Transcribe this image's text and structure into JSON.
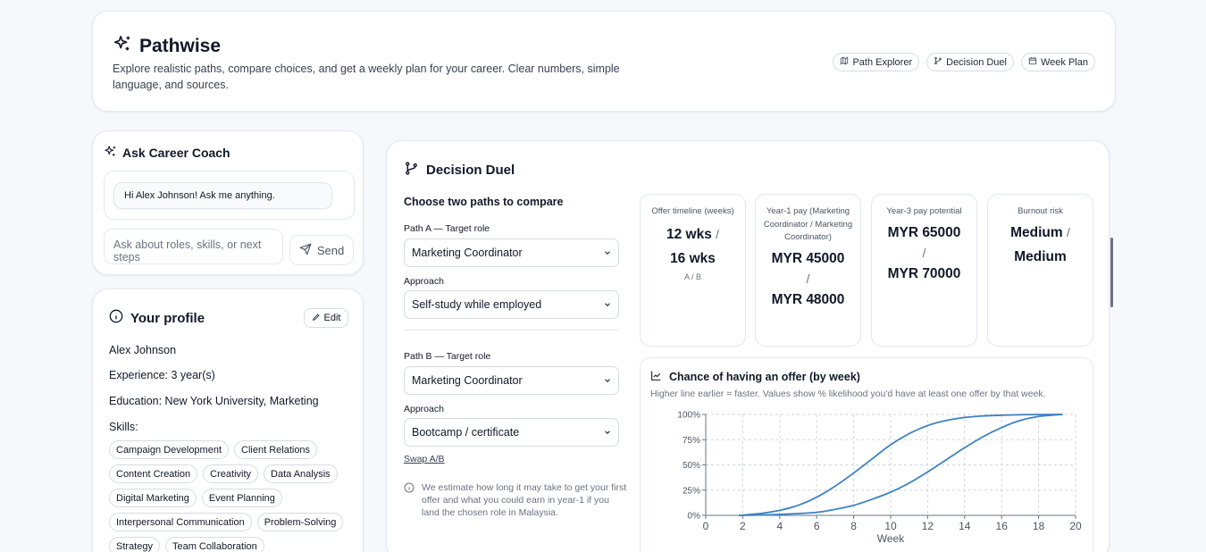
{
  "header": {
    "title": "Pathwise",
    "description": "Explore realistic paths, compare choices, and get a weekly plan for your career. Clear numbers, simple language, and sources.",
    "nav": [
      {
        "label": "Path Explorer",
        "icon": "map-icon"
      },
      {
        "label": "Decision Duel",
        "icon": "git-branch-icon"
      },
      {
        "label": "Week Plan",
        "icon": "calendar-icon"
      }
    ]
  },
  "coach": {
    "title": "Ask Career Coach",
    "greeting": "Hi Alex Johnson! Ask me anything.",
    "input_placeholder": "Ask about roles, skills, or next steps",
    "send_label": "Send"
  },
  "profile": {
    "title": "Your profile",
    "edit_label": "Edit",
    "name": "Alex Johnson",
    "experience": "Experience: 3 year(s)",
    "education": "Education: New York University, Marketing",
    "skills_label": "Skills:",
    "skills": [
      "Campaign Development",
      "Client Relations",
      "Content Creation",
      "Creativity",
      "Data Analysis",
      "Digital Marketing",
      "Event Planning",
      "Interpersonal Communication",
      "Problem-Solving",
      "Strategy",
      "Team Collaboration"
    ]
  },
  "duel": {
    "title": "Decision Duel",
    "subtitle": "Choose two paths to compare",
    "path_a": {
      "role_label": "Path A — Target role",
      "role": "Marketing Coordinator",
      "approach_label": "Approach",
      "approach": "Self-study while employed"
    },
    "path_b": {
      "role_label": "Path B — Target role",
      "role": "Marketing Coordinator",
      "approach_label": "Approach",
      "approach": "Bootcamp / certificate"
    },
    "swap_label": "Swap A/B",
    "note": "We estimate how long it may take to get your first offer and what you could earn in year-1 if you land the chosen role in Malaysia.",
    "stats": [
      {
        "caption": "Offer timeline (weeks)",
        "a": "12 wks",
        "b": "16 wks",
        "footer": "A / B"
      },
      {
        "caption": "Year-1 pay (Marketing Coordinator / Marketing Coordinator)",
        "a": "MYR 45000",
        "b": "MYR 48000"
      },
      {
        "caption": "Year-3 pay potential",
        "a": "MYR 65000",
        "b": "MYR 70000"
      },
      {
        "caption": "Burnout risk",
        "a": "Medium",
        "b": "Medium"
      }
    ],
    "slash": "/"
  },
  "chart_data": {
    "type": "line",
    "title": "Chance of having an offer (by week)",
    "subtitle": "Higher line earlier = faster. Values show % likelihood you'd have at least one offer by that week.",
    "xlabel": "Week",
    "ylabel": "",
    "xlim": [
      0,
      20
    ],
    "ylim": [
      0,
      100
    ],
    "xticks": [
      "0",
      "2",
      "4",
      "6",
      "8",
      "10",
      "12",
      "14",
      "16",
      "18",
      "20"
    ],
    "yticks": [
      "0%",
      "25%",
      "50%",
      "75%",
      "100%"
    ],
    "grid": true,
    "line_color": "#3b82c4",
    "series": [
      {
        "x": [
          1.8,
          3,
          4,
          5,
          6,
          7,
          8,
          9,
          10,
          11,
          12,
          13,
          14,
          15,
          16,
          17,
          18,
          19.3
        ],
        "y": [
          0,
          2,
          5,
          10,
          18,
          29,
          42,
          56,
          70,
          81,
          89,
          94,
          97,
          98.5,
          99.3,
          99.7,
          99.9,
          100
        ]
      },
      {
        "x": [
          1.8,
          4,
          6,
          7,
          8,
          9,
          10,
          11,
          12,
          13,
          14,
          15,
          16,
          17,
          18,
          19.3
        ],
        "y": [
          0,
          1,
          3,
          6,
          10,
          16,
          23,
          32,
          43,
          55,
          67,
          78,
          87,
          94,
          98,
          100
        ]
      }
    ]
  }
}
